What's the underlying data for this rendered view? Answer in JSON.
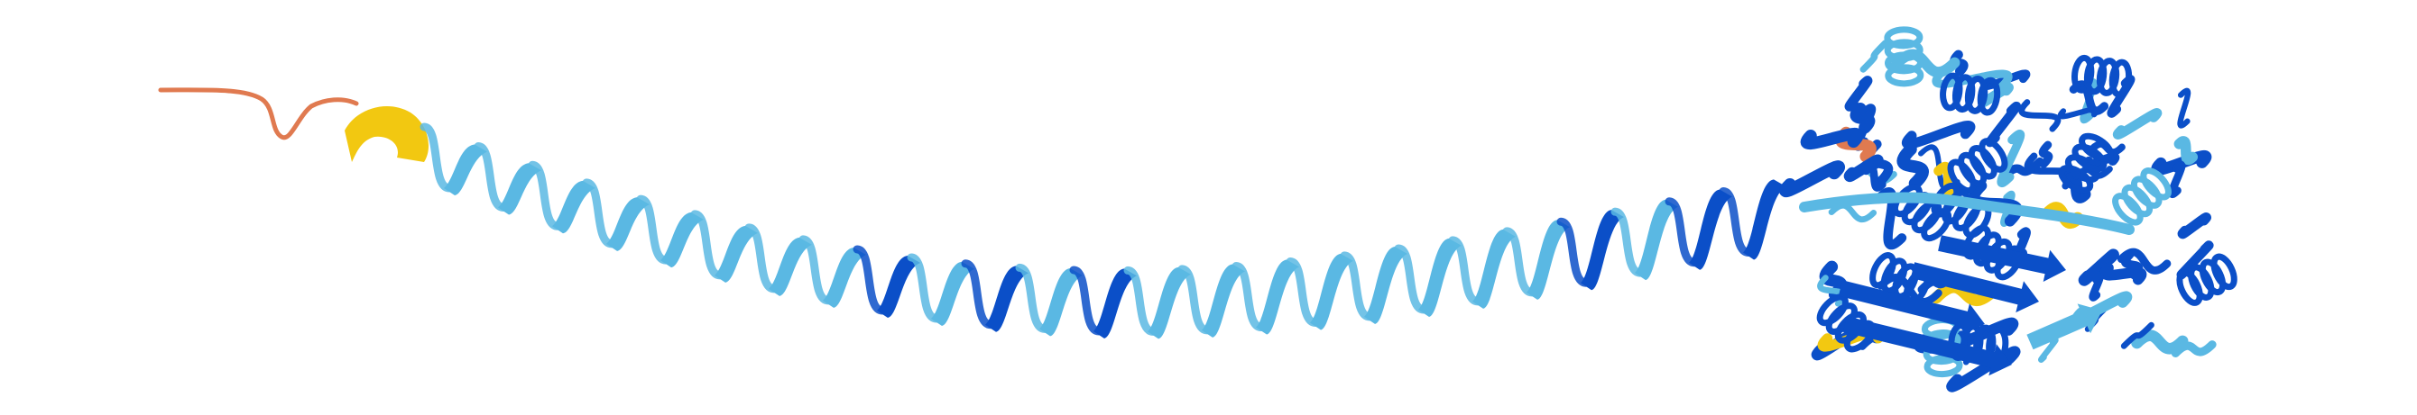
{
  "scene": {
    "subject": "protein-ribbon-structure",
    "background_color": "#ffffff",
    "colors": {
      "very_high_confidence": "#0b4fc8",
      "confident": "#5ab8e3",
      "low_confidence": "#f2c811",
      "very_low_confidence": "#e07a50"
    },
    "parts": [
      {
        "name": "disordered-tail",
        "color_key": "very_low_confidence"
      },
      {
        "name": "short-helix",
        "color_key": "low_confidence"
      },
      {
        "name": "long-coiled-coil-helix",
        "color_key": "confident"
      },
      {
        "name": "globular-domain",
        "color_key": "very_high_confidence"
      }
    ]
  }
}
